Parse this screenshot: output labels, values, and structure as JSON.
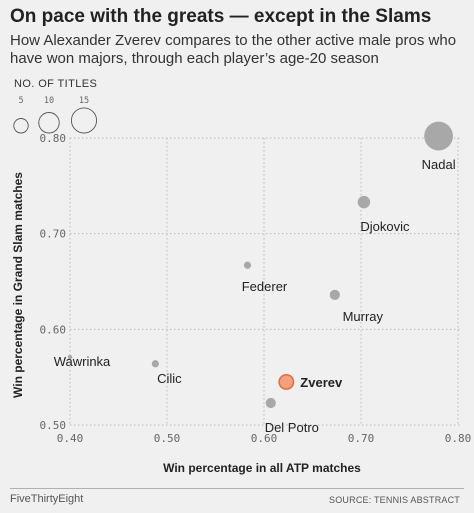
{
  "header": {
    "title": "On pace with the greats — except in the Slams",
    "subtitle": "How Alexander Zverev compares to the other active male pros who have won majors, through each player’s age-20 season"
  },
  "footer": {
    "brand": "FiveThirtyEight",
    "source": "SOURCE: TENNIS ABSTRACT"
  },
  "chart_data": {
    "type": "scatter",
    "xlabel": "Win percentage in all ATP matches",
    "ylabel": "Win percentage in Grand Slam matches",
    "xlim": [
      0.4,
      0.8
    ],
    "ylim": [
      0.5,
      0.8
    ],
    "x_ticks": [
      {
        "value": 0.4,
        "label": "0.40"
      },
      {
        "value": 0.5,
        "label": "0.50"
      },
      {
        "value": 0.6,
        "label": "0.60"
      },
      {
        "value": 0.7,
        "label": "0.70"
      },
      {
        "value": 0.8,
        "label": "0.80"
      }
    ],
    "y_ticks": [
      {
        "value": 0.5,
        "label": "0.50"
      },
      {
        "value": 0.6,
        "label": "0.60"
      },
      {
        "value": 0.7,
        "label": "0.70"
      },
      {
        "value": 0.8,
        "label": "0.80"
      }
    ],
    "grid": true,
    "size_legend": {
      "title": "NO. OF TITLES",
      "entries": [
        {
          "titles": 5,
          "label": "5"
        },
        {
          "titles": 10,
          "label": "10"
        },
        {
          "titles": 15,
          "label": "15"
        }
      ],
      "placement": "top-left"
    },
    "points": [
      {
        "name": "Nadal",
        "x": 0.78,
        "y": 0.802,
        "titles": 16,
        "highlight": false
      },
      {
        "name": "Djokovic",
        "x": 0.703,
        "y": 0.733,
        "titles": 3,
        "highlight": false
      },
      {
        "name": "Federer",
        "x": 0.583,
        "y": 0.667,
        "titles": 1,
        "highlight": false
      },
      {
        "name": "Murray",
        "x": 0.673,
        "y": 0.636,
        "titles": 2,
        "highlight": false
      },
      {
        "name": "Wawrinka",
        "x": 0.4,
        "y": 0.571,
        "titles": 0,
        "highlight": false
      },
      {
        "name": "Cilic",
        "x": 0.488,
        "y": 0.564,
        "titles": 1,
        "highlight": false
      },
      {
        "name": "Zverev",
        "x": 0.623,
        "y": 0.545,
        "titles": 4,
        "highlight": true
      },
      {
        "name": "Del Potro",
        "x": 0.607,
        "y": 0.523,
        "titles": 2,
        "highlight": false
      }
    ],
    "colors": {
      "dot": "#a8a8a8",
      "highlight_fill": "#f3a07e",
      "highlight_stroke": "#e8693a",
      "grid": "#b8b8b8",
      "background": "#f0f0f0"
    }
  }
}
